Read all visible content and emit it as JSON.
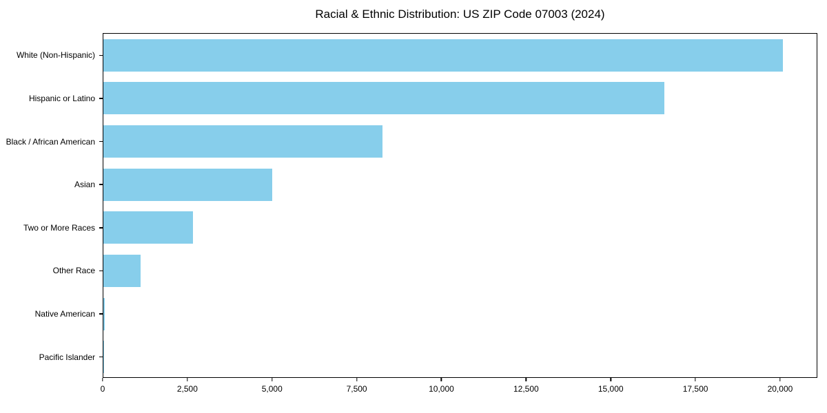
{
  "page": {
    "background": "#ffffff"
  },
  "chart_data": {
    "type": "bar",
    "orientation": "horizontal",
    "title": "Racial & Ethnic Distribution: US ZIP Code 07003 (2024)",
    "categories": [
      "White (Non-Hispanic)",
      "Hispanic or Latino",
      "Black / African American",
      "Asian",
      "Two or More Races",
      "Other Race",
      "Native American",
      "Pacific Islander"
    ],
    "values": [
      20100,
      16600,
      8250,
      5000,
      2650,
      1100,
      40,
      15
    ],
    "xlabel": "",
    "ylabel": "",
    "xlim": [
      0,
      21100
    ],
    "x_ticks": [
      0,
      2500,
      5000,
      7500,
      10000,
      12500,
      15000,
      17500,
      20000
    ],
    "x_tick_labels": [
      "0",
      "2,500",
      "5,000",
      "7,500",
      "10,000",
      "12,500",
      "15,000",
      "17,500",
      "20,000"
    ],
    "bar_color": "#87CEEB",
    "axis_color": "#000000",
    "grid": false,
    "legend_position": "none"
  }
}
